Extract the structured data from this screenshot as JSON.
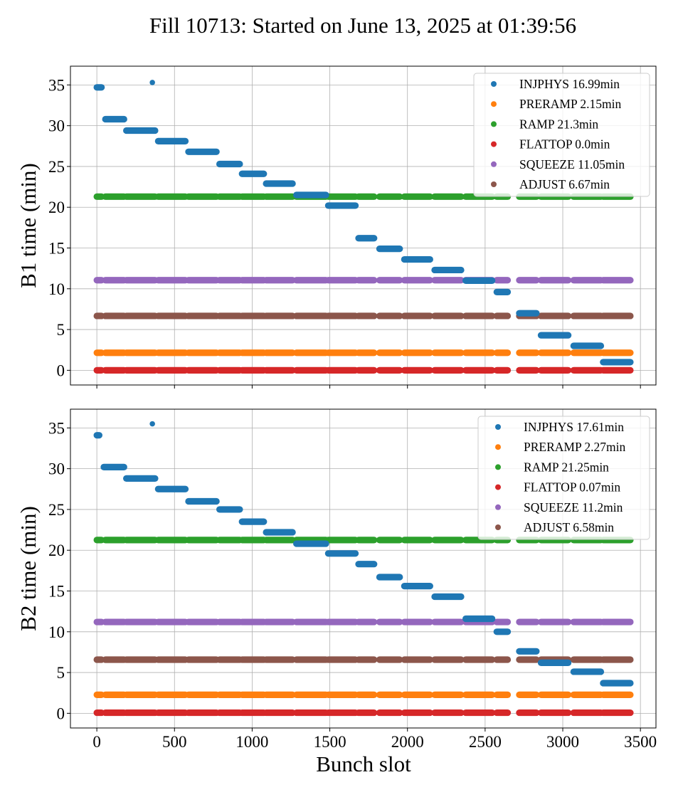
{
  "title": "Fill 10713: Started on June 13, 2025 at 01:39:56",
  "colors": {
    "INJPHYS": "#1f77b4",
    "PRERAMP": "#ff7f0e",
    "RAMP": "#2ca02c",
    "FLATTOP": "#d62728",
    "SQUEEZE": "#9467bd",
    "ADJUST": "#8c564b"
  },
  "chart_data": [
    {
      "type": "scatter",
      "ylabel": "B1 time (min)",
      "xlabel": "",
      "xlim": [
        -170,
        3600
      ],
      "ylim": [
        -1.8,
        37.3
      ],
      "xticks": [
        0,
        500,
        1000,
        1500,
        2000,
        2500,
        3000,
        3500
      ],
      "yticks": [
        0,
        5,
        10,
        15,
        20,
        25,
        30,
        35
      ],
      "grid": true,
      "legend_position": "top-right",
      "legend": [
        "INJPHYS 16.99min",
        "PRERAMP 2.15min",
        "RAMP 21.3min",
        "FLATTOP 0.0min",
        "SQUEEZE 11.05min",
        "ADJUST 6.67min"
      ],
      "constant_series": [
        {
          "phase": "PRERAMP",
          "y": 2.15
        },
        {
          "phase": "RAMP",
          "y": 21.3
        },
        {
          "phase": "FLATTOP",
          "y": 0.0
        },
        {
          "phase": "SQUEEZE",
          "y": 11.05
        },
        {
          "phase": "ADJUST",
          "y": 6.67
        }
      ],
      "injphys_segments": [
        {
          "x0": 0,
          "x1": 30,
          "y": 34.7
        },
        {
          "x0": 355,
          "x1": 360,
          "y": 35.3
        },
        {
          "x0": 55,
          "x1": 175,
          "y": 30.8
        },
        {
          "x0": 190,
          "x1": 375,
          "y": 29.4
        },
        {
          "x0": 395,
          "x1": 570,
          "y": 28.1
        },
        {
          "x0": 590,
          "x1": 770,
          "y": 26.8
        },
        {
          "x0": 790,
          "x1": 920,
          "y": 25.3
        },
        {
          "x0": 935,
          "x1": 1075,
          "y": 24.1
        },
        {
          "x0": 1090,
          "x1": 1260,
          "y": 22.9
        },
        {
          "x0": 1285,
          "x1": 1475,
          "y": 21.5
        },
        {
          "x0": 1490,
          "x1": 1665,
          "y": 20.2
        },
        {
          "x0": 1685,
          "x1": 1785,
          "y": 16.2
        },
        {
          "x0": 1820,
          "x1": 1950,
          "y": 14.9
        },
        {
          "x0": 1980,
          "x1": 2145,
          "y": 13.6
        },
        {
          "x0": 2175,
          "x1": 2345,
          "y": 12.3
        },
        {
          "x0": 2375,
          "x1": 2545,
          "y": 11.0
        },
        {
          "x0": 2575,
          "x1": 2645,
          "y": 9.6
        },
        {
          "x0": 2720,
          "x1": 2830,
          "y": 7.0
        },
        {
          "x0": 2860,
          "x1": 3035,
          "y": 4.3
        },
        {
          "x0": 3070,
          "x1": 3245,
          "y": 3.0
        },
        {
          "x0": 3260,
          "x1": 3435,
          "y": 1.0
        }
      ]
    },
    {
      "type": "scatter",
      "ylabel": "B2 time (min)",
      "xlabel": "Bunch slot",
      "xlim": [
        -170,
        3600
      ],
      "ylim": [
        -1.8,
        37.3
      ],
      "xticks": [
        0,
        500,
        1000,
        1500,
        2000,
        2500,
        3000,
        3500
      ],
      "yticks": [
        0,
        5,
        10,
        15,
        20,
        25,
        30,
        35
      ],
      "grid": true,
      "legend_position": "top-right",
      "legend": [
        "INJPHYS 17.61min",
        "PRERAMP 2.27min",
        "RAMP 21.25min",
        "FLATTOP 0.07min",
        "SQUEEZE 11.2min",
        "ADJUST 6.58min"
      ],
      "constant_series": [
        {
          "phase": "PRERAMP",
          "y": 2.27
        },
        {
          "phase": "RAMP",
          "y": 21.25
        },
        {
          "phase": "FLATTOP",
          "y": 0.07
        },
        {
          "phase": "SQUEEZE",
          "y": 11.2
        },
        {
          "phase": "ADJUST",
          "y": 6.58
        }
      ],
      "injphys_segments": [
        {
          "x0": 0,
          "x1": 15,
          "y": 34.1
        },
        {
          "x0": 355,
          "x1": 360,
          "y": 35.5
        },
        {
          "x0": 45,
          "x1": 175,
          "y": 30.2
        },
        {
          "x0": 190,
          "x1": 375,
          "y": 28.8
        },
        {
          "x0": 395,
          "x1": 570,
          "y": 27.5
        },
        {
          "x0": 590,
          "x1": 770,
          "y": 26.0
        },
        {
          "x0": 790,
          "x1": 920,
          "y": 25.0
        },
        {
          "x0": 935,
          "x1": 1075,
          "y": 23.5
        },
        {
          "x0": 1090,
          "x1": 1260,
          "y": 22.2
        },
        {
          "x0": 1285,
          "x1": 1475,
          "y": 20.8
        },
        {
          "x0": 1490,
          "x1": 1665,
          "y": 19.6
        },
        {
          "x0": 1685,
          "x1": 1785,
          "y": 18.3
        },
        {
          "x0": 1820,
          "x1": 1950,
          "y": 16.7
        },
        {
          "x0": 1980,
          "x1": 2145,
          "y": 15.6
        },
        {
          "x0": 2175,
          "x1": 2345,
          "y": 14.3
        },
        {
          "x0": 2375,
          "x1": 2545,
          "y": 11.6
        },
        {
          "x0": 2575,
          "x1": 2645,
          "y": 10.0
        },
        {
          "x0": 2720,
          "x1": 2830,
          "y": 7.6
        },
        {
          "x0": 2860,
          "x1": 3035,
          "y": 6.2
        },
        {
          "x0": 3070,
          "x1": 3245,
          "y": 5.1
        },
        {
          "x0": 3260,
          "x1": 3435,
          "y": 3.7
        }
      ]
    }
  ],
  "trains": [
    [
      0,
      30
    ],
    [
      55,
      175
    ],
    [
      190,
      375
    ],
    [
      395,
      570
    ],
    [
      590,
      770
    ],
    [
      790,
      920
    ],
    [
      935,
      1075
    ],
    [
      1090,
      1260
    ],
    [
      1285,
      1475
    ],
    [
      1490,
      1665
    ],
    [
      1685,
      1785
    ],
    [
      1820,
      1950
    ],
    [
      1980,
      2145
    ],
    [
      2175,
      2345
    ],
    [
      2375,
      2545
    ],
    [
      2575,
      2645
    ],
    [
      2720,
      2830
    ],
    [
      2860,
      3035
    ],
    [
      3070,
      3245
    ],
    [
      3260,
      3435
    ]
  ]
}
